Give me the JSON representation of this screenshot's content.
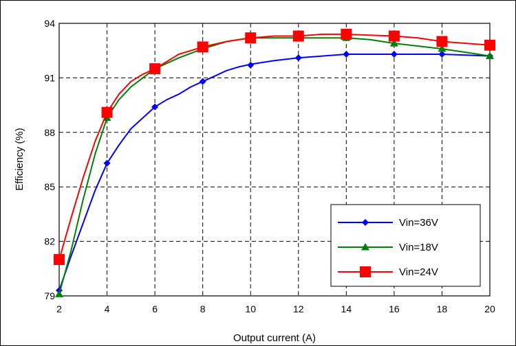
{
  "chart_data": {
    "type": "line",
    "title": "",
    "xlabel": "Output current (A)",
    "ylabel": "Efficiency (%)",
    "xlim": [
      2,
      20
    ],
    "ylim": [
      79,
      94
    ],
    "x_ticks": [
      2,
      4,
      6,
      8,
      10,
      12,
      14,
      16,
      18,
      20
    ],
    "y_ticks": [
      79,
      82,
      85,
      88,
      91,
      94
    ],
    "grid": true,
    "legend_position": "bottom-right",
    "series": [
      {
        "name": "Vin=36V",
        "color": "#0000ff",
        "marker": "diamond",
        "marker_x": [
          2,
          4,
          6,
          8,
          10,
          12,
          14,
          16,
          18,
          20
        ],
        "marker_y": [
          79.3,
          86.3,
          89.4,
          90.8,
          91.7,
          92.1,
          92.3,
          92.3,
          92.3,
          92.2
        ],
        "x": [
          2,
          2.5,
          3,
          3.5,
          4,
          4.5,
          5,
          5.5,
          6,
          6.5,
          7,
          7.5,
          8,
          8.5,
          9,
          9.5,
          10,
          11,
          12,
          13,
          14,
          15,
          16,
          17,
          18,
          19,
          20
        ],
        "y": [
          79.3,
          81.2,
          83.0,
          84.8,
          86.3,
          87.3,
          88.2,
          88.8,
          89.4,
          89.8,
          90.1,
          90.5,
          90.8,
          91.1,
          91.4,
          91.6,
          91.75,
          91.95,
          92.1,
          92.2,
          92.3,
          92.3,
          92.3,
          92.3,
          92.3,
          92.25,
          92.2
        ]
      },
      {
        "name": "Vin=18V",
        "color": "#008000",
        "marker": "triangle",
        "marker_x": [
          2,
          4,
          6,
          8,
          10,
          12,
          14,
          16,
          18,
          20
        ],
        "marker_y": [
          79.1,
          88.8,
          91.5,
          92.6,
          93.2,
          93.2,
          93.2,
          92.9,
          92.6,
          92.2
        ],
        "x": [
          2,
          2.5,
          3,
          3.5,
          4,
          4.5,
          5,
          5.5,
          6,
          6.5,
          7,
          7.5,
          8,
          8.5,
          9,
          9.5,
          10,
          11,
          12,
          13,
          14,
          15,
          16,
          17,
          18,
          19,
          20
        ],
        "y": [
          79.1,
          81.5,
          84.3,
          86.8,
          88.8,
          89.8,
          90.5,
          91.0,
          91.5,
          91.8,
          92.1,
          92.35,
          92.6,
          92.8,
          93.0,
          93.1,
          93.2,
          93.2,
          93.2,
          93.2,
          93.2,
          93.1,
          92.9,
          92.75,
          92.6,
          92.4,
          92.2
        ]
      },
      {
        "name": "Vin=24V",
        "color": "#ff0000",
        "marker": "square",
        "marker_x": [
          2,
          4,
          6,
          8,
          10,
          12,
          14,
          16,
          18,
          20
        ],
        "marker_y": [
          81.0,
          89.1,
          91.5,
          92.7,
          93.2,
          93.3,
          93.4,
          93.3,
          93.0,
          92.8
        ],
        "x": [
          2,
          2.5,
          3,
          3.5,
          4,
          4.5,
          5,
          5.5,
          6,
          6.5,
          7,
          7.5,
          8,
          8.5,
          9,
          9.5,
          10,
          11,
          12,
          13,
          14,
          15,
          16,
          17,
          18,
          19,
          20
        ],
        "y": [
          81.0,
          83.3,
          85.5,
          87.5,
          89.1,
          90.1,
          90.8,
          91.2,
          91.5,
          91.9,
          92.3,
          92.5,
          92.7,
          92.85,
          93.0,
          93.1,
          93.2,
          93.3,
          93.3,
          93.4,
          93.4,
          93.35,
          93.3,
          93.2,
          93.0,
          92.9,
          92.8
        ]
      }
    ]
  }
}
